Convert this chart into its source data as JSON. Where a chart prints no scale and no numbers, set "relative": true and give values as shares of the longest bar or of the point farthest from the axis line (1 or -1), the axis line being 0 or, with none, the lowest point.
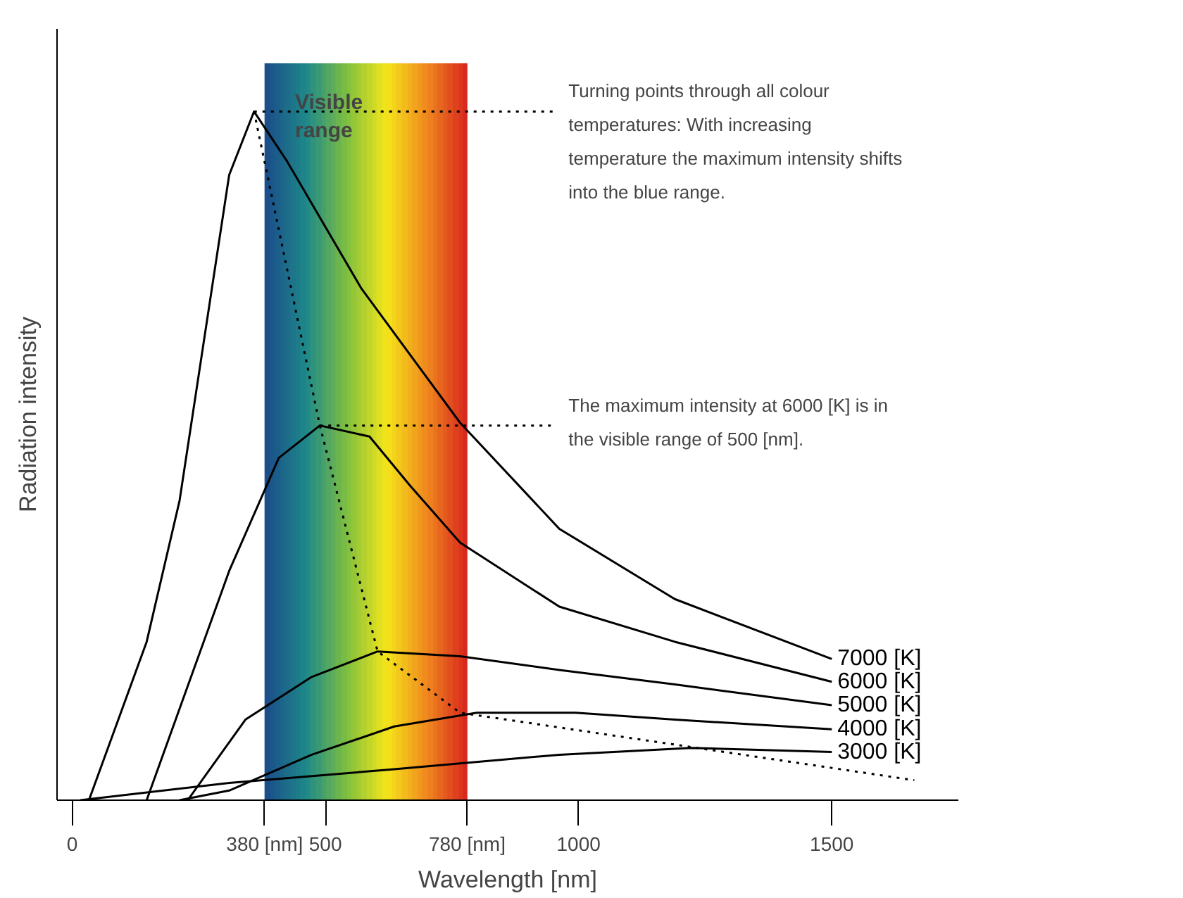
{
  "chart_data": {
    "type": "line",
    "relative": true,
    "xlabel": "Wavelength [nm]",
    "ylabel": "Radiation intensity",
    "xlim": [
      -30,
      1750
    ],
    "xticks": [
      0,
      {
        "value": 380,
        "label": "380 [nm]"
      },
      500,
      {
        "value": 780,
        "label": "780 [nm]"
      },
      1000,
      1500
    ],
    "legend": false,
    "grid": false,
    "series": [
      {
        "name": "7000 [K]",
        "color": "#000000",
        "x": [
          33,
          147,
          212,
          310,
          359,
          424,
          571,
          766,
          962,
          1190,
          1500
        ],
        "values": [
          0,
          0.23,
          0.435,
          0.908,
          1.0,
          0.928,
          0.743,
          0.548,
          0.394,
          0.292,
          0.205
        ]
      },
      {
        "name": "6000 [K]",
        "color": "#000000",
        "x": [
          147,
          310,
          408,
          489,
          587,
          668,
          766,
          962,
          1190,
          1500
        ],
        "values": [
          0,
          0.333,
          0.497,
          0.544,
          0.528,
          0.456,
          0.374,
          0.281,
          0.23,
          0.172
        ]
      },
      {
        "name": "5000 [K]",
        "color": "#000000",
        "x": [
          228,
          342,
          473,
          603,
          766,
          962,
          1190,
          1500
        ],
        "values": [
          0,
          0.117,
          0.179,
          0.216,
          0.209,
          0.189,
          0.168,
          0.138
        ]
      },
      {
        "name": "4000 [K]",
        "color": "#000000",
        "x": [
          212,
          310,
          473,
          636,
          799,
          994,
          1190,
          1500
        ],
        "values": [
          0,
          0.014,
          0.066,
          0.107,
          0.127,
          0.127,
          0.117,
          0.103
        ]
      },
      {
        "name": "3000 [K]",
        "color": "#000000",
        "x": [
          16,
          310,
          636,
          962,
          1223,
          1500
        ],
        "values": [
          0,
          0.025,
          0.045,
          0.066,
          0.076,
          0.07
        ]
      },
      {
        "color": "#000000",
        "line_style": "dotted",
        "x": [
          359,
          489,
          603,
          766,
          1663
        ],
        "values": [
          1.0,
          0.544,
          0.216,
          0.127,
          0.029
        ]
      }
    ],
    "bands": [
      {
        "axis": "x",
        "from": 380,
        "to": 780,
        "label": "Visible range"
      }
    ],
    "annotations": [
      {
        "text": "Turning points through all colour temperatures: With increasing temperature the maximum intensity shifts into the blue range.",
        "x": 359,
        "y": 1.0
      },
      {
        "text": "The maximum intensity at 6000 [K] is in the visible range of 500 [nm].",
        "x": 489,
        "y": 0.544
      }
    ]
  }
}
